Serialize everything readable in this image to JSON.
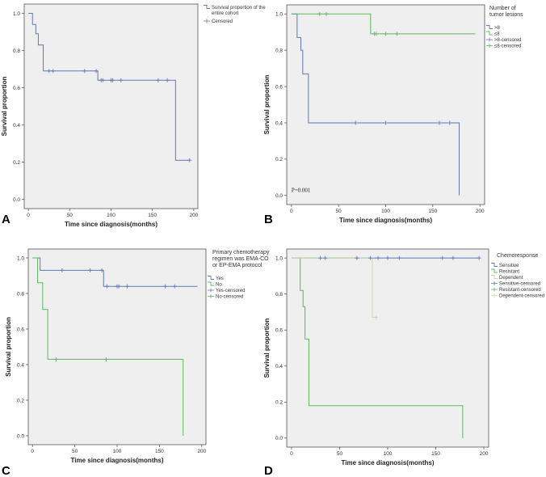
{
  "chart_data": [
    {
      "type": "line",
      "panel_label": "A",
      "xlabel": "Time since diagnosis(months)",
      "ylabel": "Survival proportion",
      "xlim": [
        -5,
        205
      ],
      "ylim": [
        -0.05,
        1.05
      ],
      "xticks": [
        0,
        50,
        100,
        150,
        200
      ],
      "yticks": [
        0.0,
        0.2,
        0.4,
        0.6,
        0.8,
        1.0
      ],
      "xtick_labels": [
        "0",
        "50",
        "100",
        "150",
        "200"
      ],
      "ytick_labels": [
        "0.0",
        "0.2",
        "0.4",
        "0.6",
        "0.8",
        "1.0"
      ],
      "legend_title_lines": [],
      "legend_position": "top-right",
      "annotation": "",
      "series": [
        {
          "name": "Survival proportion of the entire cohort",
          "legend_lines": [
            "Survival proportion of the",
            "entire cohort"
          ],
          "color": "#6476b8",
          "steps": [
            [
              0,
              1.0
            ],
            [
              5,
              0.94
            ],
            [
              9,
              0.89
            ],
            [
              12,
              0.83
            ],
            [
              18,
              0.69
            ],
            [
              84,
              0.64
            ],
            [
              178,
              0.21
            ],
            [
              195,
              0.21
            ]
          ],
          "censored": [
            [
              25,
              0.69
            ],
            [
              30,
              0.69
            ],
            [
              68,
              0.69
            ],
            [
              82,
              0.69
            ],
            [
              88,
              0.64
            ],
            [
              90,
              0.64
            ],
            [
              100,
              0.64
            ],
            [
              102,
              0.64
            ],
            [
              112,
              0.64
            ],
            [
              157,
              0.64
            ],
            [
              168,
              0.64
            ],
            [
              195,
              0.21
            ]
          ]
        },
        {
          "name": "Censored",
          "legend_lines": [
            "Censored"
          ],
          "color": "#6476b8",
          "legend_only": true,
          "steps": [],
          "censored": []
        }
      ]
    },
    {
      "type": "line",
      "panel_label": "B",
      "xlabel": "Time since diagnosis(months)",
      "ylabel": "Survival proportion",
      "xlim": [
        -5,
        205
      ],
      "ylim": [
        -0.05,
        1.05
      ],
      "xticks": [
        0,
        50,
        100,
        150,
        200
      ],
      "yticks": [
        0.0,
        0.2,
        0.4,
        0.6,
        0.8,
        1.0
      ],
      "xtick_labels": [
        "0",
        "50",
        "100",
        "150",
        "200"
      ],
      "ytick_labels": [
        "0.0",
        "0.2",
        "0.4",
        "0.6",
        "0.8",
        "1.0"
      ],
      "legend_title_lines": [
        "Number of",
        "tumor lesions"
      ],
      "legend_position": "top-right",
      "annotation": "P=0.001",
      "series": [
        {
          "name": ">8",
          "legend_lines": [
            ">8"
          ],
          "color": "#6476b8",
          "steps": [
            [
              0,
              1.0
            ],
            [
              6,
              0.87
            ],
            [
              10,
              0.8
            ],
            [
              12,
              0.67
            ],
            [
              18,
              0.4
            ],
            [
              178,
              0.0
            ]
          ],
          "censored": []
        },
        {
          "name": "≤8",
          "legend_lines": [
            "≤8"
          ],
          "color": "#5cb85c",
          "steps": [
            [
              0,
              1.0
            ],
            [
              84,
              0.89
            ],
            [
              195,
              0.89
            ]
          ],
          "censored": []
        },
        {
          "name": ">8-censored",
          "legend_lines": [
            ">8-censored"
          ],
          "color": "#6476b8",
          "steps": [],
          "censored": [
            [
              68,
              0.4
            ],
            [
              100,
              0.4
            ],
            [
              157,
              0.4
            ],
            [
              168,
              0.4
            ]
          ]
        },
        {
          "name": "≤8-censored",
          "legend_lines": [
            "≤8-censored"
          ],
          "color": "#5cb85c",
          "steps": [],
          "censored": [
            [
              30,
              1.0
            ],
            [
              37,
              1.0
            ],
            [
              88,
              0.89
            ],
            [
              90,
              0.89
            ],
            [
              100,
              0.89
            ],
            [
              112,
              0.89
            ]
          ]
        }
      ]
    },
    {
      "type": "line",
      "panel_label": "C",
      "xlabel": "Time since diagnosis(months)",
      "ylabel": "Survival proportion",
      "xlim": [
        -5,
        205
      ],
      "ylim": [
        -0.05,
        1.05
      ],
      "xticks": [
        0,
        50,
        100,
        150,
        200
      ],
      "yticks": [
        0.0,
        0.2,
        0.4,
        0.6,
        0.8,
        1.0
      ],
      "xtick_labels": [
        "0",
        "50",
        "100",
        "150",
        "200"
      ],
      "ytick_labels": [
        "0.0",
        "0.2",
        "0.4",
        "0.6",
        "0.8",
        "1.0"
      ],
      "legend_title_lines": [
        "Primary chemotherapy",
        "regimen was EMA-CO",
        "or EP-EMA protocol"
      ],
      "legend_position": "top-right",
      "annotation": "",
      "series": [
        {
          "name": "Yes",
          "legend_lines": [
            "Yes"
          ],
          "color": "#6476b8",
          "steps": [
            [
              0,
              1.0
            ],
            [
              9,
              0.93
            ],
            [
              84,
              0.84
            ],
            [
              195,
              0.84
            ]
          ],
          "censored": []
        },
        {
          "name": "No",
          "legend_lines": [
            "No"
          ],
          "color": "#5cb85c",
          "steps": [
            [
              0,
              1.0
            ],
            [
              6,
              0.86
            ],
            [
              12,
              0.71
            ],
            [
              18,
              0.43
            ],
            [
              178,
              0.0
            ]
          ],
          "censored": []
        },
        {
          "name": "Yes-censored",
          "legend_lines": [
            "Yes-censored"
          ],
          "color": "#6476b8",
          "steps": [],
          "censored": [
            [
              35,
              0.93
            ],
            [
              68,
              0.93
            ],
            [
              82,
              0.93
            ],
            [
              88,
              0.84
            ],
            [
              100,
              0.84
            ],
            [
              102,
              0.84
            ],
            [
              112,
              0.84
            ],
            [
              157,
              0.84
            ],
            [
              168,
              0.84
            ]
          ]
        },
        {
          "name": "No-censored",
          "legend_lines": [
            "No-censored"
          ],
          "color": "#5cb85c",
          "steps": [],
          "censored": [
            [
              28,
              0.43
            ],
            [
              87,
              0.43
            ]
          ]
        }
      ]
    },
    {
      "type": "line",
      "panel_label": "D",
      "xlabel": "Time since diagnosis(months)",
      "ylabel": "Survival proportion",
      "xlim": [
        -5,
        205
      ],
      "ylim": [
        -0.05,
        1.05
      ],
      "xticks": [
        0,
        50,
        100,
        150,
        200
      ],
      "yticks": [
        0.0,
        0.2,
        0.4,
        0.6,
        0.8,
        1.0
      ],
      "xtick_labels": [
        "0",
        "50",
        "100",
        "150",
        "200"
      ],
      "ytick_labels": [
        "0.0",
        "0.2",
        "0.4",
        "0.6",
        "0.8",
        "1.0"
      ],
      "legend_title_lines": [
        "Chemoresponse"
      ],
      "legend_position": "top-right",
      "annotation": "",
      "series": [
        {
          "name": "Sensitive",
          "legend_lines": [
            "Sensitive"
          ],
          "color": "#6476b8",
          "steps": [
            [
              0,
              1.0
            ],
            [
              195,
              1.0
            ]
          ],
          "censored": []
        },
        {
          "name": "Resistant",
          "legend_lines": [
            "Resistant"
          ],
          "color": "#5cb85c",
          "steps": [
            [
              6,
              1.0
            ],
            [
              9,
              0.82
            ],
            [
              12,
              0.73
            ],
            [
              14,
              0.55
            ],
            [
              18,
              0.18
            ],
            [
              178,
              0.0
            ]
          ],
          "censored": []
        },
        {
          "name": "Dependent",
          "legend_lines": [
            "Dependent"
          ],
          "color": "#c9d7a4",
          "steps": [
            [
              0,
              1.0
            ],
            [
              84,
              0.67
            ],
            [
              88,
              0.67
            ]
          ],
          "censored": []
        },
        {
          "name": "Sensitive-censored",
          "legend_lines": [
            "Sensitive-censored"
          ],
          "color": "#6476b8",
          "steps": [],
          "censored": [
            [
              30,
              1.0
            ],
            [
              35,
              1.0
            ],
            [
              68,
              1.0
            ],
            [
              82,
              1.0
            ],
            [
              90,
              1.0
            ],
            [
              100,
              1.0
            ],
            [
              112,
              1.0
            ],
            [
              157,
              1.0
            ],
            [
              168,
              1.0
            ],
            [
              195,
              1.0
            ]
          ]
        },
        {
          "name": "Resistant-censored",
          "legend_lines": [
            "Resistant-censored"
          ],
          "color": "#5cb85c",
          "steps": [],
          "censored": []
        },
        {
          "name": "Dependent-censored",
          "legend_lines": [
            "Dependent-censored"
          ],
          "color": "#c9d7a4",
          "steps": [],
          "censored": [
            [
              88,
              0.67
            ]
          ]
        }
      ]
    }
  ]
}
